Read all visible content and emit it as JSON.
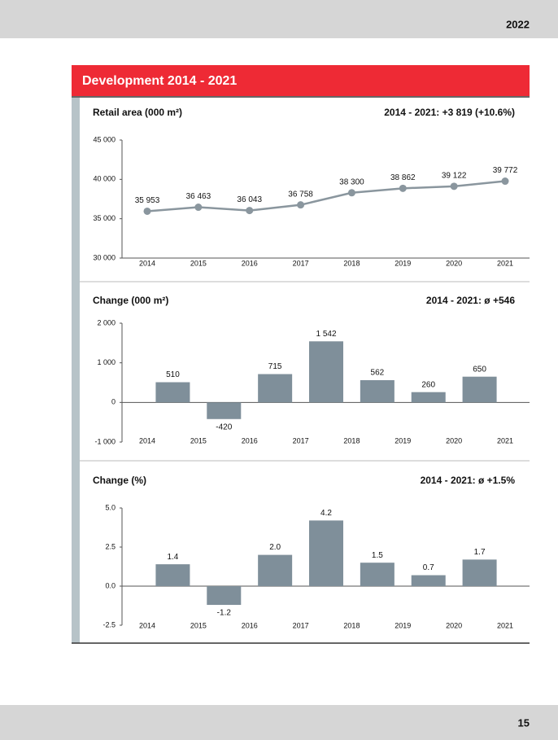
{
  "header": {
    "year": "2022",
    "title": "Development 2014 - 2021"
  },
  "footer": {
    "page": "15"
  },
  "chart_data": [
    {
      "type": "line",
      "title": "Retail area (000 m²)",
      "annotation": "2014 - 2021: +3 819 (+10.6%)",
      "categories": [
        "2014",
        "2015",
        "2016",
        "2017",
        "2018",
        "2019",
        "2020",
        "2021"
      ],
      "values": [
        35953,
        36463,
        36043,
        36758,
        38300,
        38862,
        39122,
        39772
      ],
      "value_labels": [
        "35 953",
        "36 463",
        "36 043",
        "36 758",
        "38 300",
        "38 862",
        "39 122",
        "39 772"
      ],
      "color": "#8a969e",
      "ylim": [
        30000,
        45000
      ],
      "yticks": [
        {
          "value": 45000,
          "label": "45 000"
        },
        {
          "value": 40000,
          "label": "40 000"
        },
        {
          "value": 35000,
          "label": "35 000"
        },
        {
          "value": 30000,
          "label": "30 000"
        }
      ]
    },
    {
      "type": "bar",
      "title": "Change (000 m²)",
      "annotation": "2014 - 2021: ø +546",
      "categories": [
        "2014",
        "2015",
        "2016",
        "2017",
        "2018",
        "2019",
        "2020",
        "2021"
      ],
      "values": [
        null,
        510,
        -420,
        715,
        1542,
        562,
        260,
        650
      ],
      "value_labels": [
        null,
        "510",
        "-420",
        "715",
        "1 542",
        "562",
        "260",
        "650"
      ],
      "color": "#7f8f9a",
      "ylim": [
        -1000,
        2000
      ],
      "yticks": [
        {
          "value": 2000,
          "label": "2 000"
        },
        {
          "value": 1000,
          "label": "1 000"
        },
        0,
        {
          "value": -1000,
          "label": "-1 000"
        }
      ]
    },
    {
      "type": "bar",
      "title": "Change (%)",
      "annotation": "2014 - 2021: ø +1.5%",
      "categories": [
        "2014",
        "2015",
        "2016",
        "2017",
        "2018",
        "2019",
        "2020",
        "2021"
      ],
      "values": [
        null,
        1.4,
        -1.2,
        2.0,
        4.2,
        1.5,
        0.7,
        1.7
      ],
      "value_labels": [
        null,
        "1.4",
        "-1.2",
        "2.0",
        "4.2",
        "1.5",
        "0.7",
        "1.7"
      ],
      "color": "#7f8f9a",
      "ylim": [
        -2.5,
        5.0
      ],
      "yticks": [
        {
          "value": 5.0,
          "label": "5.0"
        },
        2.5,
        {
          "value": 0.0,
          "label": "0.0"
        },
        -2.5
      ]
    }
  ]
}
